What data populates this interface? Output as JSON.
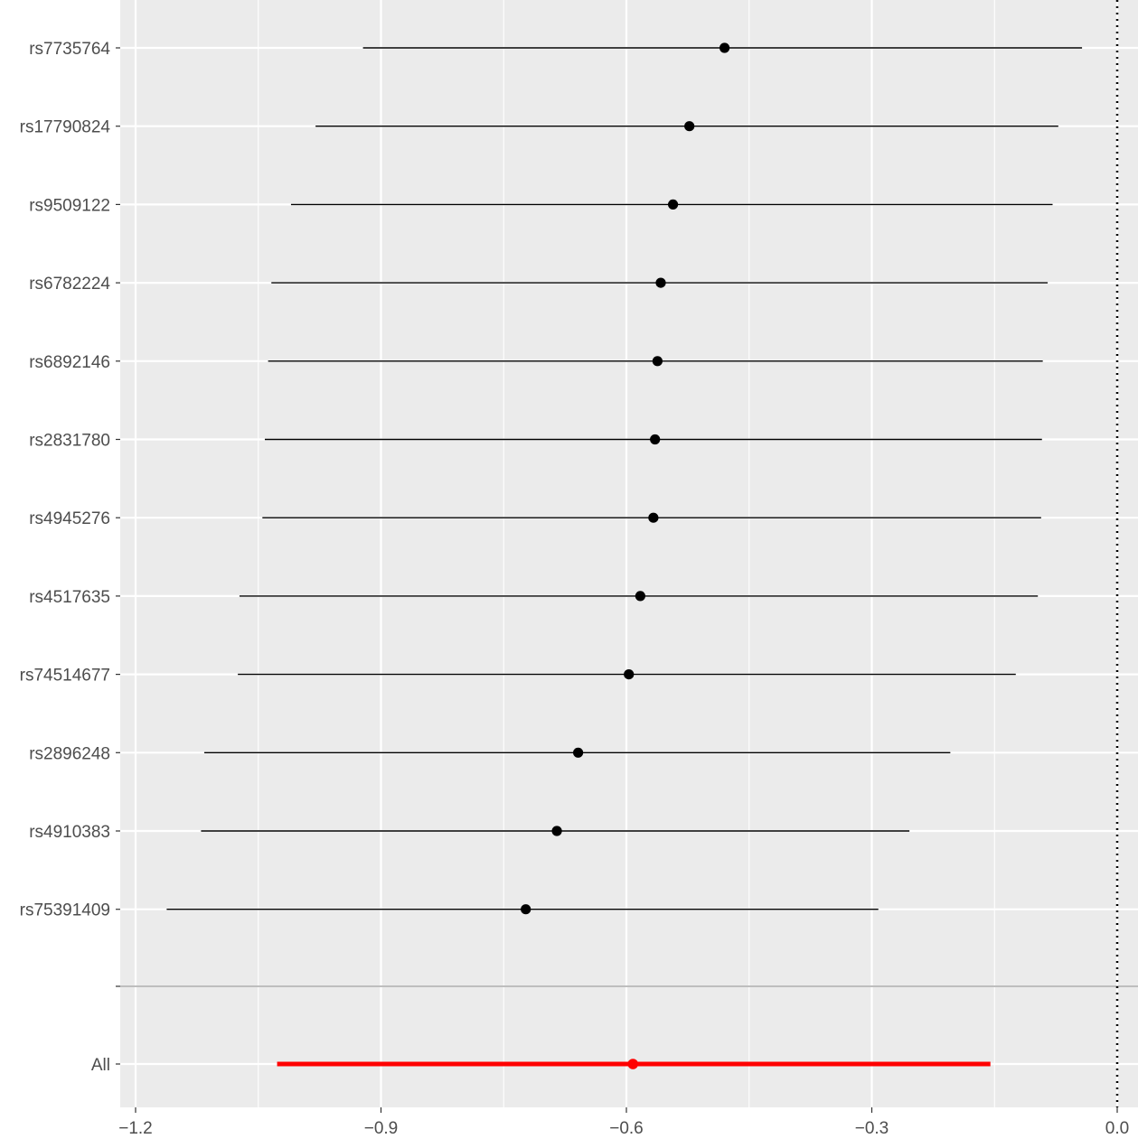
{
  "chart_data": {
    "type": "forest",
    "title": "",
    "xlabel": "",
    "ylabel": "",
    "xlim": [
      -1.21,
      0.0
    ],
    "x_ticks": [
      -1.2,
      -0.9,
      -0.6,
      -0.3,
      0.0
    ],
    "x_tick_labels": [
      "−1.2",
      "−0.9",
      "−0.6",
      "−0.3",
      "0.0"
    ],
    "reference_line": {
      "x": 0.0,
      "style": "dotted"
    },
    "grid": true,
    "legend": "none",
    "colors": {
      "panel": "#ebebeb",
      "grid": "#ffffff",
      "snp": "#000000",
      "overall": "#ff0000",
      "separator": "#bebebe",
      "tick_text": "#4d4d4d"
    },
    "rows": [
      {
        "label": "rs7735764",
        "estimate": -0.48,
        "lower": -0.922,
        "upper": -0.043
      },
      {
        "label": "rs17790824",
        "estimate": -0.523,
        "lower": -0.98,
        "upper": -0.072
      },
      {
        "label": "rs9509122",
        "estimate": -0.543,
        "lower": -1.01,
        "upper": -0.079
      },
      {
        "label": "rs6782224",
        "estimate": -0.558,
        "lower": -1.034,
        "upper": -0.085
      },
      {
        "label": "rs6892146",
        "estimate": -0.562,
        "lower": -1.038,
        "upper": -0.091
      },
      {
        "label": "rs2831780",
        "estimate": -0.565,
        "lower": -1.042,
        "upper": -0.092
      },
      {
        "label": "rs4945276",
        "estimate": -0.567,
        "lower": -1.045,
        "upper": -0.093
      },
      {
        "label": "rs4517635",
        "estimate": -0.583,
        "lower": -1.073,
        "upper": -0.097
      },
      {
        "label": "rs74514677",
        "estimate": -0.597,
        "lower": -1.075,
        "upper": -0.124
      },
      {
        "label": "rs2896248",
        "estimate": -0.659,
        "lower": -1.116,
        "upper": -0.204
      },
      {
        "label": "rs4910383",
        "estimate": -0.685,
        "lower": -1.12,
        "upper": -0.254
      },
      {
        "label": "rs75391409",
        "estimate": -0.723,
        "lower": -1.162,
        "upper": -0.292
      }
    ],
    "overall": {
      "label": "All",
      "estimate": -0.592,
      "lower": -1.027,
      "upper": -0.155
    }
  }
}
